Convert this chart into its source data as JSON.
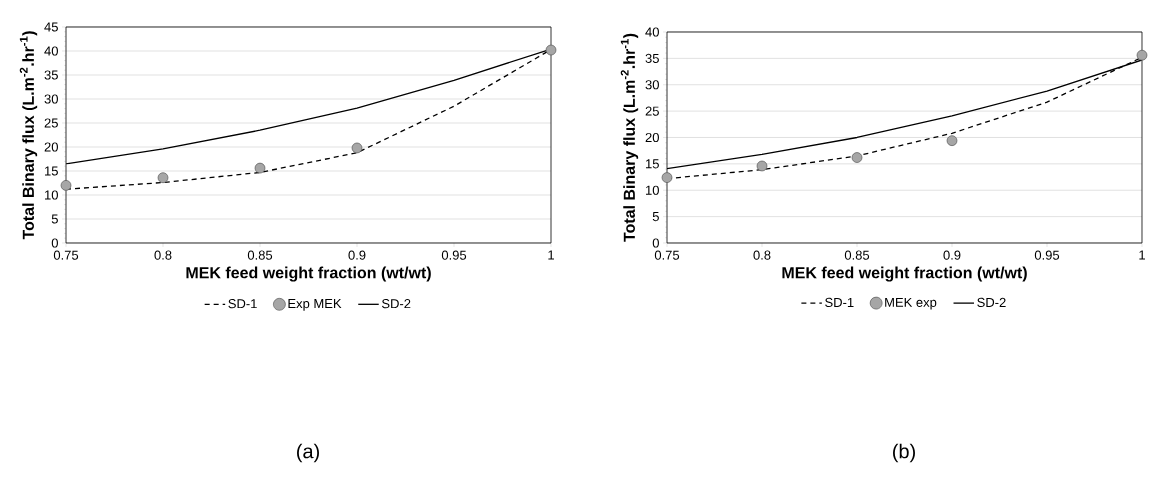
{
  "chart_data": [
    {
      "type": "line",
      "xlabel": "MEK feed weight fraction (wt/wt)",
      "ylabel": "Total Binary flux (L.m$^{-2}$.hr$^{-1}$)",
      "xlim": [
        0.75,
        1
      ],
      "xticks": [
        0.75,
        0.8,
        0.85,
        0.9,
        0.95,
        1
      ],
      "ylim": [
        0,
        45
      ],
      "yticks": [
        0,
        5,
        10,
        15,
        20,
        25,
        30,
        35,
        40,
        45
      ],
      "grid": "y",
      "legend": "bottom",
      "annotations": [
        "(a)"
      ],
      "series": [
        {
          "name": "SD-1",
          "color": "#000000",
          "line_style": "dashed",
          "marker": "none",
          "x": [
            0.75,
            0.8,
            0.85,
            0.9,
            0.95,
            1
          ],
          "values": [
            11.2,
            12.6,
            14.7,
            18.8,
            28.5,
            40.3
          ]
        },
        {
          "name": "Exp MEK",
          "type": "scatter",
          "color": "#a6a6a6",
          "marker": "circle",
          "x": [
            0.75,
            0.8,
            0.85,
            0.9,
            1
          ],
          "values": [
            12.0,
            13.6,
            15.6,
            19.8,
            40.2
          ]
        },
        {
          "name": "SD-2",
          "color": "#000000",
          "line_style": "solid",
          "marker": "none",
          "x": [
            0.75,
            0.8,
            0.85,
            0.9,
            0.95,
            1
          ],
          "values": [
            16.5,
            19.6,
            23.5,
            28.1,
            33.9,
            40.4
          ]
        }
      ]
    },
    {
      "type": "line",
      "xlabel": "MEK feed weight fraction (wt/wt)",
      "ylabel": "Total Binary flux (L.m$^{-2}$.hr$^{-1}$)",
      "xlim": [
        0.75,
        1
      ],
      "xticks": [
        0.75,
        0.8,
        0.85,
        0.9,
        0.95,
        1
      ],
      "ylim": [
        0,
        40
      ],
      "yticks": [
        0,
        5,
        10,
        15,
        20,
        25,
        30,
        35,
        40
      ],
      "grid": "y",
      "legend": "bottom",
      "annotations": [
        "(b)"
      ],
      "series": [
        {
          "name": "SD-1",
          "color": "#000000",
          "line_style": "dashed",
          "marker": "none",
          "x": [
            0.75,
            0.8,
            0.85,
            0.9,
            0.95,
            1
          ],
          "values": [
            12.2,
            13.9,
            16.5,
            20.8,
            26.7,
            35.2
          ]
        },
        {
          "name": "MEK exp",
          "type": "scatter",
          "color": "#a6a6a6",
          "marker": "circle",
          "x": [
            0.75,
            0.8,
            0.85,
            0.9,
            1
          ],
          "values": [
            12.4,
            14.6,
            16.2,
            19.4,
            35.6
          ]
        },
        {
          "name": "SD-2",
          "color": "#000000",
          "line_style": "solid",
          "marker": "none",
          "x": [
            0.75,
            0.8,
            0.85,
            0.9,
            0.95,
            1
          ],
          "values": [
            14.1,
            16.8,
            20.0,
            24.1,
            28.8,
            34.7
          ]
        }
      ]
    }
  ]
}
